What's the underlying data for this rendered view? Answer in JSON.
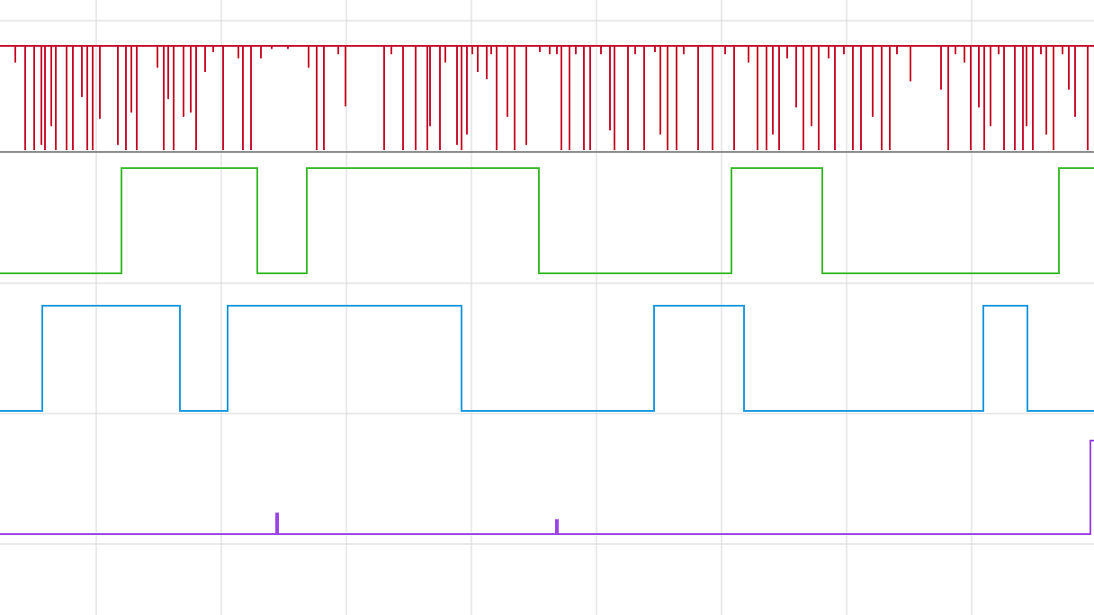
{
  "chart_data": [
    {
      "type": "spike",
      "color": "#c8102e",
      "xlim": [
        0,
        1216
      ],
      "ylim": [
        0,
        1
      ],
      "grid": true,
      "xticks": [
        107,
        246,
        385,
        524,
        663,
        802,
        941,
        1080
      ],
      "x": [
        17,
        28,
        38,
        46,
        50,
        57,
        62,
        74,
        81,
        91,
        97,
        103,
        111,
        131,
        140,
        146,
        152,
        175,
        182,
        187,
        193,
        204,
        212,
        218,
        228,
        237,
        248,
        265,
        270,
        279,
        290,
        302,
        320,
        343,
        352,
        360,
        376,
        384,
        427,
        435,
        448,
        462,
        475,
        478,
        489,
        495,
        508,
        513,
        519,
        525,
        531,
        541,
        546,
        552,
        564,
        572,
        585,
        600,
        611,
        619,
        624,
        633,
        640,
        649,
        656,
        668,
        678,
        683,
        698,
        706,
        716,
        728,
        734,
        742,
        752,
        760,
        776,
        792,
        806,
        816,
        832,
        842,
        852,
        859,
        866,
        875,
        885,
        893,
        902,
        910,
        921,
        928,
        938,
        948,
        957,
        970,
        980,
        989,
        997,
        1012,
        1046,
        1054,
        1062,
        1072,
        1079,
        1088,
        1094,
        1101,
        1110,
        1116,
        1128,
        1137,
        1141,
        1148,
        1157,
        1163,
        1171,
        1181,
        1188,
        1195,
        1209
      ],
      "values": [
        0.84,
        0,
        0,
        0.05,
        0,
        0.23,
        0,
        0,
        0,
        0.51,
        0,
        0,
        0.3,
        0.05,
        0,
        0.36,
        0,
        0.79,
        0,
        0.49,
        0,
        0.32,
        0.36,
        0,
        0.75,
        0.94,
        0,
        0.88,
        0,
        0,
        0.88,
        0.97,
        0.97,
        0.79,
        0,
        0,
        0.92,
        0.42,
        0,
        0.92,
        0,
        0,
        0,
        0.23,
        0,
        0.84,
        0.05,
        0,
        0.15,
        0.92,
        0.75,
        0.68,
        0.92,
        0,
        0.32,
        0,
        0.05,
        0.94,
        0.92,
        0.92,
        0,
        0,
        0.92,
        0,
        0,
        0.92,
        0.19,
        0,
        0,
        0.92,
        0,
        0.94,
        0.15,
        0,
        0,
        0.92,
        0,
        0,
        0.92,
        0,
        0.84,
        0,
        0,
        0.15,
        0,
        0.88,
        0.41,
        0,
        0.23,
        0,
        0.88,
        0,
        0.92,
        0,
        0,
        0.32,
        0,
        0,
        0.92,
        0.66,
        0.58,
        0,
        0.92,
        0.84,
        0,
        0.41,
        0,
        0.23,
        0.92,
        0,
        0,
        0,
        0.23,
        0,
        0.92,
        0.15,
        0,
        0.92,
        0.58,
        0.32,
        0
      ]
    },
    {
      "type": "step",
      "color": "#3dbb2e",
      "xlim": [
        0,
        1216
      ],
      "ylim": [
        0,
        1
      ],
      "x": [
        0,
        135,
        286,
        341,
        599,
        813,
        914,
        1177
      ],
      "values": [
        0,
        1,
        0,
        1,
        0,
        1,
        0,
        1
      ]
    },
    {
      "type": "step",
      "color": "#1e9be0",
      "xlim": [
        0,
        1216
      ],
      "ylim": [
        0,
        1
      ],
      "x": [
        0,
        47,
        200,
        253,
        513,
        727,
        827,
        1093,
        1142
      ],
      "values": [
        0,
        1,
        0,
        1,
        0,
        1,
        0,
        1,
        0
      ]
    },
    {
      "type": "step",
      "color": "#9b45e4",
      "xlim": [
        0,
        1216
      ],
      "ylim": [
        0,
        1
      ],
      "x": [
        0,
        307,
        309,
        618,
        620,
        1212
      ],
      "values": [
        0,
        0.22,
        0,
        0.15,
        0,
        1
      ]
    }
  ]
}
